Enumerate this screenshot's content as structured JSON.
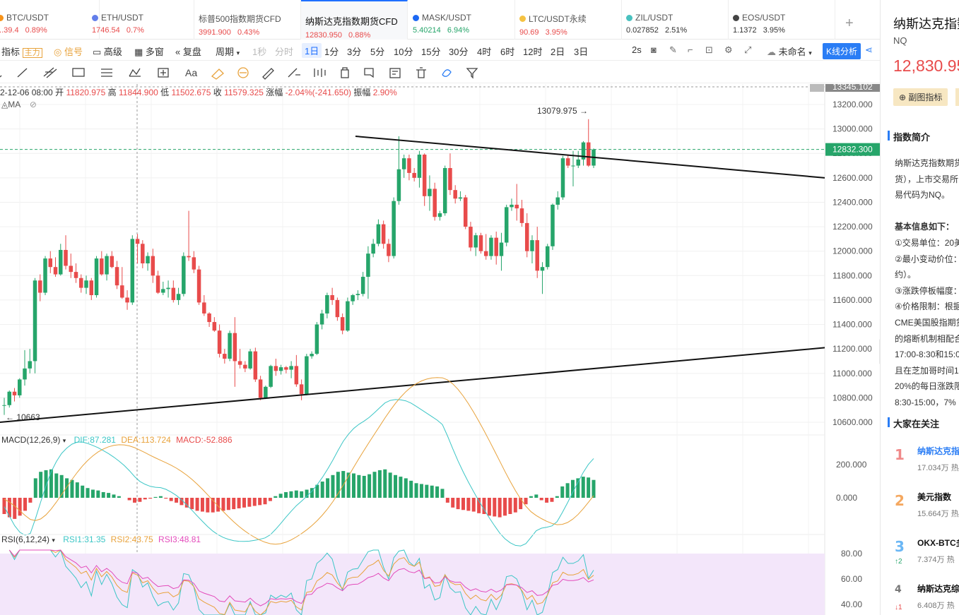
{
  "tabs": [
    {
      "name": "BTC/USDT",
      "price": "...39.4",
      "change": "0.89%",
      "dir": "up",
      "coin": "#f7931a",
      "display_name": "BTC/USDT",
      "cut": true
    },
    {
      "name": "ETH/USDT",
      "price": "1746.54",
      "change": "0.7%",
      "dir": "up",
      "coin": "#627eea"
    },
    {
      "name": "标普500指数期货CFD",
      "price": "3991.900",
      "change": "0.43%",
      "dir": "up",
      "coin": ""
    },
    {
      "name": "纳斯达克指数期货CFD",
      "price": "12830.950",
      "change": "0.88%",
      "dir": "up",
      "coin": "",
      "active": true
    },
    {
      "name": "MASK/USDT",
      "price": "5.40214",
      "change": "6.94%",
      "dir": "dn",
      "coin": "#1c68f3"
    },
    {
      "name": "LTC/USDT永续",
      "price": "90.69",
      "change": "3.95%",
      "dir": "up",
      "coin": "#f5c242"
    },
    {
      "name": "ZIL/USDT",
      "price": "0.027852",
      "change": "2.51%",
      "dir": "neutral",
      "coin": "#49c1bf"
    },
    {
      "name": "EOS/USDT",
      "price": "1.1372",
      "change": "3.95%",
      "dir": "neutral",
      "coin": "#444"
    }
  ],
  "toolbar": {
    "indicator": "指标",
    "main": "主力",
    "signal": "信号",
    "advanced": "高级",
    "multi": "多窗",
    "replay": "复盘",
    "period": "周期",
    "intervals": [
      {
        "l": "1秒",
        "dim": true
      },
      {
        "l": "分时",
        "dim": true
      },
      {
        "l": "1日",
        "sel": true
      },
      {
        "l": "1分"
      },
      {
        "l": "3分"
      },
      {
        "l": "5分"
      },
      {
        "l": "10分"
      },
      {
        "l": "15分"
      },
      {
        "l": "30分"
      },
      {
        "l": "4时"
      },
      {
        "l": "6时"
      },
      {
        "l": "12时"
      },
      {
        "l": "2日"
      },
      {
        "l": "3日"
      }
    ],
    "refresh": "2s",
    "unnamed": "未命名",
    "kline": "K线分析"
  },
  "ohlc": {
    "date": "2-12-06 08:00",
    "open_label": "开",
    "open": "11820.975",
    "high_label": "高",
    "high": "11844.900",
    "low_label": "低",
    "low": "11502.675",
    "close_label": "收",
    "close": "11579.325",
    "chg_label": "涨幅",
    "chg": "-2.04%(-241.650)",
    "amp_label": "振幅",
    "amp": "2.90%"
  },
  "ma_label": "MA",
  "price_axis": [
    "13200.000",
    "13000.000",
    "12800.000",
    "12600.000",
    "12400.000",
    "12200.000",
    "12000.000",
    "11800.000",
    "11600.000",
    "11400.000",
    "11200.000",
    "11000.000",
    "10800.000",
    "10600.000"
  ],
  "price_top": "13345.102",
  "current_price": "12832.300",
  "annot_high": "13079.975 →",
  "annot_low": "← 10663",
  "macd": {
    "label": "MACD(12,26,9)",
    "dif": "DIF:87.281",
    "dea": "DEA:113.724",
    "macd": "MACD:-52.886",
    "axis": [
      "200.000",
      "0.000"
    ]
  },
  "rsi": {
    "label": "RSI(6,12,24)",
    "r1": "RSI1:31.35",
    "r2": "RSI2:43.75",
    "r3": "RSI3:48.81",
    "axis": [
      "80.00",
      "60.00",
      "40.00"
    ]
  },
  "colors": {
    "up": "#e84b4b",
    "down": "#26a56a",
    "accent": "#2a7df5",
    "dif": "#3cc6c6",
    "dea": "#e8a23b",
    "rsi3": "#e34bbb"
  },
  "side": {
    "title": "纳斯达克指数期货",
    "code": "NQ",
    "price": "12,830.95",
    "sub_btn": "副图指标",
    "intro_hdr": "指数简介",
    "intro": [
      "纳斯达克指数期货",
      "货），上市交易所",
      "易代码为NQ。",
      "",
      "基本信息如下：",
      "①交易单位：20美",
      "②最小变动价位：",
      "约）。",
      "③涨跌停板幅度：",
      "④价格限制：根据",
      "CME美国股指期货",
      "的熔断机制相配合",
      "17:00-8:30和15:0",
      "且在芝加哥时间1",
      "20%的每日涨跌限",
      "8:30-15:00，7%"
    ],
    "watch_hdr": "大家在关注",
    "rank": [
      {
        "n": "1",
        "t": "纳斯达克指",
        "h": "17.034万 热",
        "c": "",
        "color": "#f08a8a",
        "tcolor": "#2a7df5"
      },
      {
        "n": "2",
        "t": "美元指数",
        "h": "15.664万 热",
        "c": "",
        "color": "#f5a860",
        "tcolor": "#111"
      },
      {
        "n": "3",
        "t": "OKX-BTC多",
        "h": "7.374万 热",
        "c": "↑2",
        "color": "#6bb7f5",
        "tcolor": "#111"
      },
      {
        "n": "4",
        "t": "纳斯达克综",
        "h": "6.408万 热",
        "c": "↓1",
        "color": "#777",
        "tcolor": "#111"
      }
    ]
  },
  "chart_data": {
    "type": "candlestick",
    "price_range": [
      10600,
      13345
    ],
    "candles": [
      [
        10735,
        10800,
        10660,
        10740
      ],
      [
        10740,
        10860,
        10720,
        10850
      ],
      [
        10850,
        10880,
        10770,
        10820
      ],
      [
        10820,
        10960,
        10800,
        10950
      ],
      [
        10950,
        11190,
        10900,
        11040
      ],
      [
        11040,
        11200,
        11000,
        11100
      ],
      [
        11100,
        11780,
        11000,
        11760
      ],
      [
        11760,
        11810,
        11590,
        11660
      ],
      [
        11660,
        11960,
        11640,
        11940
      ],
      [
        11940,
        12000,
        11820,
        11870
      ],
      [
        11870,
        11950,
        11790,
        11810
      ],
      [
        11810,
        12060,
        11800,
        12010
      ],
      [
        12010,
        12130,
        11850,
        11880
      ],
      [
        11880,
        11980,
        11780,
        11830
      ],
      [
        11830,
        11900,
        11740,
        11780
      ],
      [
        11780,
        11810,
        11660,
        11700
      ],
      [
        11700,
        11800,
        11650,
        11760
      ],
      [
        11760,
        11780,
        11600,
        11640
      ],
      [
        11640,
        11960,
        11620,
        11940
      ],
      [
        11940,
        12000,
        11800,
        11810
      ],
      [
        11810,
        11980,
        11760,
        11960
      ],
      [
        11960,
        12000,
        11860,
        11870
      ],
      [
        11870,
        11920,
        11690,
        11720
      ],
      [
        11720,
        11870,
        11610,
        11620
      ],
      [
        11620,
        11680,
        11520,
        11580
      ],
      [
        11580,
        12130,
        11560,
        12100
      ],
      [
        12100,
        12140,
        11900,
        12060
      ],
      [
        12060,
        12090,
        11860,
        11900
      ],
      [
        11900,
        11990,
        11840,
        11960
      ],
      [
        11960,
        12020,
        11740,
        11800
      ],
      [
        11800,
        11840,
        11650,
        11660
      ],
      [
        11660,
        11750,
        11640,
        11690
      ],
      [
        11690,
        11760,
        11620,
        11700
      ],
      [
        11700,
        11760,
        11580,
        11600
      ],
      [
        11600,
        11700,
        11560,
        11650
      ],
      [
        11650,
        11990,
        11630,
        11960
      ],
      [
        11960,
        12330,
        11920,
        11950
      ],
      [
        11950,
        12000,
        11820,
        11850
      ],
      [
        11850,
        11880,
        11560,
        11580
      ],
      [
        11580,
        11640,
        11470,
        11490
      ],
      [
        11490,
        11500,
        11380,
        11420
      ],
      [
        11420,
        11460,
        11340,
        11350
      ],
      [
        11350,
        11400,
        11130,
        11160
      ],
      [
        11160,
        11200,
        11080,
        11120
      ],
      [
        11120,
        11350,
        11100,
        11330
      ],
      [
        11330,
        11460,
        10890,
        11100
      ],
      [
        11100,
        11200,
        11040,
        11070
      ],
      [
        11070,
        11100,
        11010,
        11040
      ],
      [
        11040,
        11200,
        11030,
        11180
      ],
      [
        11180,
        11210,
        10930,
        10950
      ],
      [
        10950,
        10980,
        10780,
        10800
      ],
      [
        10800,
        10900,
        10790,
        10890
      ],
      [
        10890,
        11070,
        10880,
        11060
      ],
      [
        11060,
        11120,
        10980,
        11020
      ],
      [
        11020,
        11070,
        10990,
        11050
      ],
      [
        11050,
        11060,
        11000,
        11030
      ],
      [
        11030,
        11100,
        10960,
        11060
      ],
      [
        11060,
        11150,
        10890,
        10910
      ],
      [
        10910,
        10950,
        10780,
        10830
      ],
      [
        10830,
        11160,
        10820,
        11140
      ],
      [
        11140,
        11180,
        11120,
        11160
      ],
      [
        11160,
        11420,
        11150,
        11400
      ],
      [
        11400,
        11520,
        11360,
        11490
      ],
      [
        11490,
        11660,
        11450,
        11640
      ],
      [
        11640,
        11700,
        11560,
        11600
      ],
      [
        11600,
        11620,
        11430,
        11460
      ],
      [
        11460,
        11490,
        11320,
        11350
      ],
      [
        11350,
        11620,
        11340,
        11590
      ],
      [
        11590,
        11650,
        11560,
        11640
      ],
      [
        11640,
        11680,
        11600,
        11650
      ],
      [
        11650,
        11830,
        11630,
        11790
      ],
      [
        11790,
        12040,
        11610,
        11980
      ],
      [
        11980,
        12100,
        11950,
        12060
      ],
      [
        12060,
        12260,
        12040,
        12220
      ],
      [
        12220,
        12250,
        12020,
        12060
      ],
      [
        12060,
        12100,
        11910,
        11960
      ],
      [
        11960,
        12440,
        11940,
        12410
      ],
      [
        12410,
        12940,
        12380,
        12670
      ],
      [
        12670,
        12790,
        12600,
        12760
      ],
      [
        12760,
        12790,
        12580,
        12640
      ],
      [
        12640,
        12680,
        12570,
        12600
      ],
      [
        12600,
        12820,
        12520,
        12790
      ],
      [
        12790,
        12800,
        12370,
        12450
      ],
      [
        12450,
        12620,
        12330,
        12510
      ],
      [
        12510,
        12560,
        12250,
        12280
      ],
      [
        12280,
        12330,
        12250,
        12310
      ],
      [
        12310,
        12700,
        12290,
        12680
      ],
      [
        12680,
        12800,
        12460,
        12500
      ],
      [
        12500,
        12540,
        12390,
        12430
      ],
      [
        12430,
        12490,
        12410,
        12440
      ],
      [
        12440,
        12460,
        12180,
        12200
      ],
      [
        12200,
        12240,
        12000,
        12030
      ],
      [
        12030,
        12150,
        11960,
        12130
      ],
      [
        12130,
        12150,
        11980,
        12000
      ],
      [
        12000,
        12140,
        11930,
        11960
      ],
      [
        11960,
        12130,
        11930,
        12110
      ],
      [
        12110,
        12160,
        11890,
        11960
      ],
      [
        11960,
        12150,
        11840,
        12070
      ],
      [
        12070,
        12380,
        12040,
        12360
      ],
      [
        12360,
        12430,
        12330,
        12380
      ],
      [
        12380,
        12550,
        12250,
        12350
      ],
      [
        12350,
        12420,
        12200,
        12230
      ],
      [
        12230,
        12310,
        11950,
        12000
      ],
      [
        12000,
        12130,
        11900,
        12090
      ],
      [
        12090,
        12200,
        11780,
        11840
      ],
      [
        11840,
        11910,
        11650,
        11870
      ],
      [
        11870,
        12060,
        11850,
        12040
      ],
      [
        12040,
        12390,
        12010,
        12380
      ],
      [
        12380,
        12490,
        12340,
        12440
      ],
      [
        12440,
        12780,
        12420,
        12760
      ],
      [
        12760,
        12790,
        12680,
        12700
      ],
      [
        12700,
        12820,
        12530,
        12700
      ],
      [
        12700,
        12820,
        12680,
        12750
      ],
      [
        12750,
        12900,
        12700,
        12890
      ],
      [
        12890,
        13080,
        12690,
        12700
      ],
      [
        12700,
        12840,
        12680,
        12832
      ]
    ],
    "macd_hist": [
      -100,
      -120,
      -130,
      -110,
      -80,
      -30,
      120,
      160,
      170,
      175,
      150,
      140,
      120,
      110,
      95,
      75,
      60,
      50,
      45,
      35,
      30,
      20,
      10,
      0,
      -15,
      -30,
      -25,
      -10,
      -5,
      5,
      10,
      -5,
      -20,
      -30,
      -45,
      -60,
      -70,
      -80,
      -85,
      -90,
      -90,
      -85,
      -80,
      -75,
      -70,
      -65,
      -60,
      -55,
      -50,
      -45,
      -40,
      -20,
      10,
      25,
      35,
      40,
      45,
      40,
      50,
      60,
      80,
      100,
      120,
      140,
      160,
      165,
      155,
      150,
      140,
      135,
      145,
      160,
      170,
      175,
      155,
      140,
      130,
      120,
      105,
      90,
      85,
      80,
      75,
      70,
      55,
      -30,
      -60,
      -70,
      -75,
      -80,
      -85,
      -95,
      -100,
      -110,
      -115,
      -120,
      -110,
      -100,
      -90,
      -70,
      -40,
      10,
      20,
      -15,
      -30,
      -25,
      10,
      70,
      90,
      110,
      120,
      130,
      125,
      110
    ],
    "rsi": {
      "levels": [
        40,
        60,
        80
      ]
    }
  }
}
